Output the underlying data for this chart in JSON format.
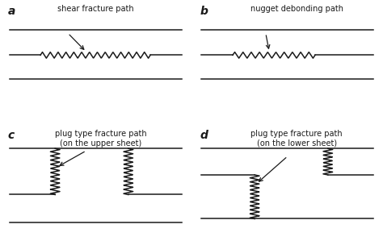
{
  "fig_width": 4.74,
  "fig_height": 2.99,
  "bg_color": "#ffffff",
  "line_color": "#1a1a1a",
  "label_a": "a",
  "label_b": "b",
  "label_c": "c",
  "label_d": "d",
  "title_a": "shear fracture path",
  "title_b": "nugget debonding path",
  "title_c": "plug type fracture path\n(on the upper sheet)",
  "title_d": "plug type fracture path\n(on the lower sheet)",
  "label_fontsize": 10,
  "title_fontsize": 7,
  "lw": 1.1
}
